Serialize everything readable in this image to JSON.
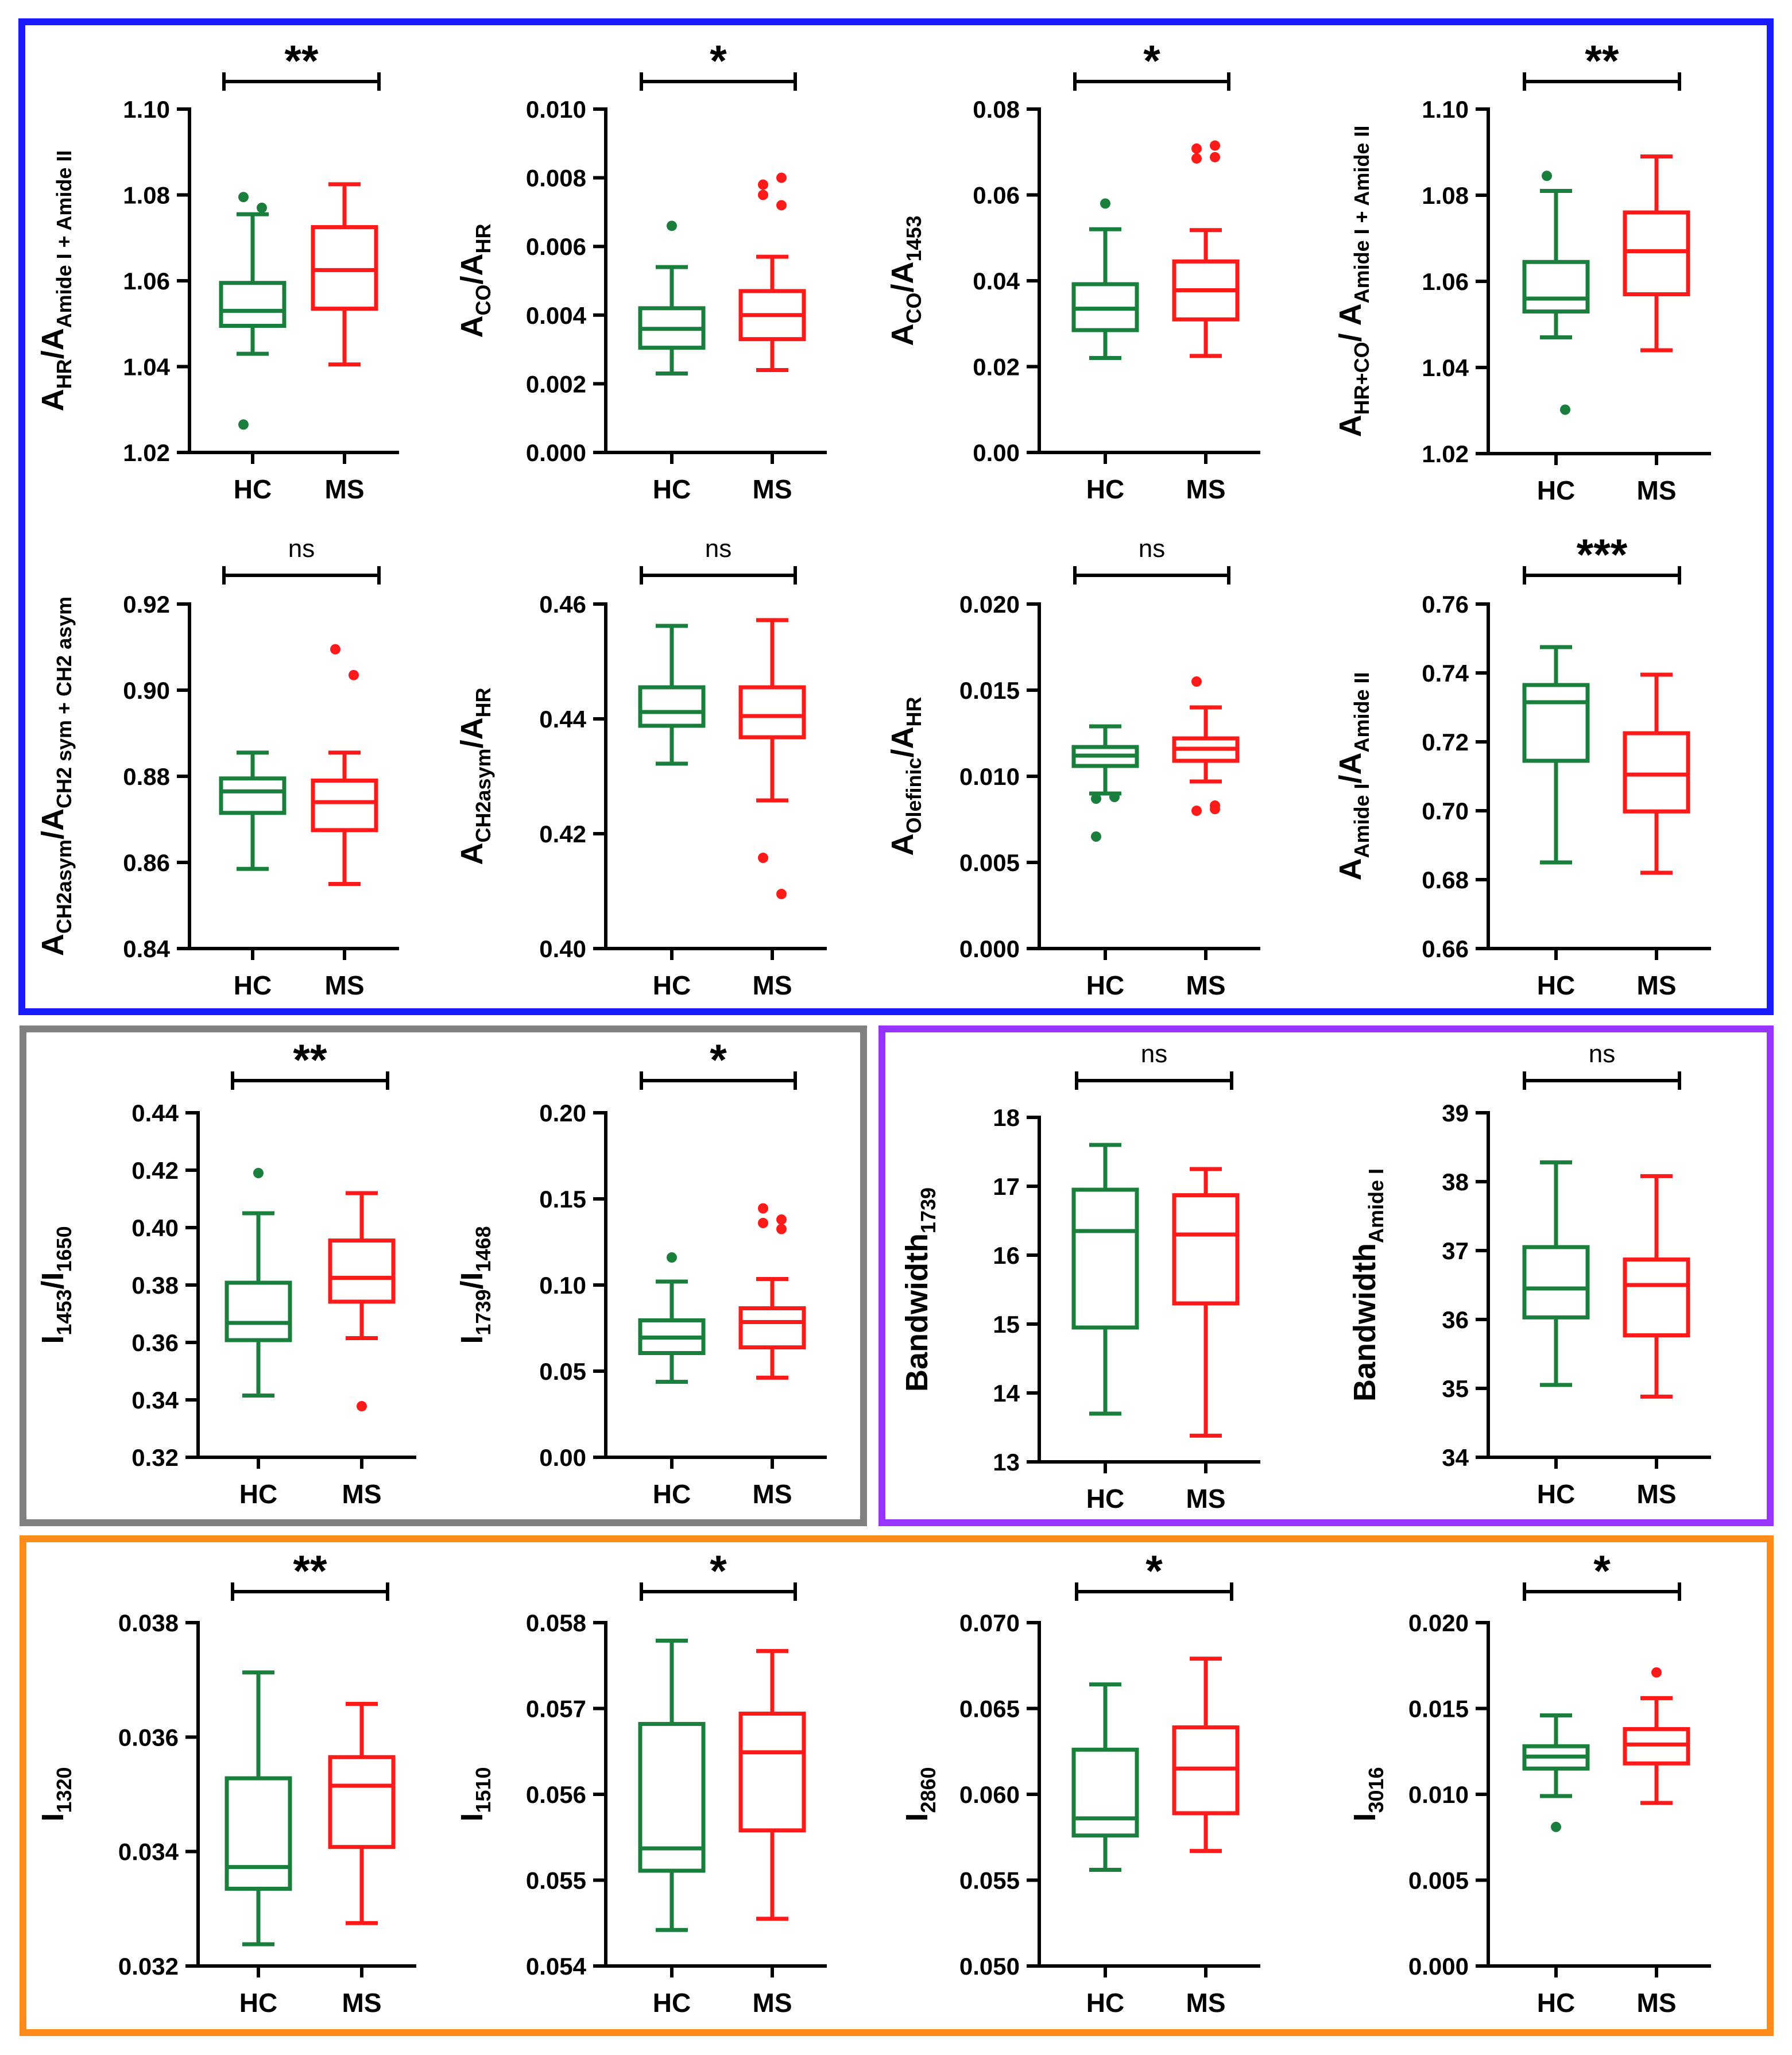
{
  "colors": {
    "hc": "#1a7f3c",
    "ms": "#ff1a1a",
    "axis": "#000000",
    "frame_blue": "#1a1aff",
    "frame_gray": "#808080",
    "frame_purple": "#9933ff",
    "frame_orange": "#ff8c1a"
  },
  "groups": [
    "HC",
    "MS"
  ],
  "chart_data": [
    {
      "type": "box",
      "id": "hr_amide",
      "ylabel": [
        {
          "t": "A"
        },
        {
          "t": "HR",
          "sub": true
        },
        {
          "t": "/A"
        },
        {
          "t": "Amide I + Amide II",
          "sub": true
        }
      ],
      "ylim": [
        1.02,
        1.1
      ],
      "ticks": [
        "1.02",
        "1.04",
        "1.06",
        "1.08",
        "1.10"
      ],
      "significance": "**",
      "boxes": [
        {
          "group": "HC",
          "min": 1.043,
          "q1": 1.0495,
          "median": 1.053,
          "q3": 1.0595,
          "max": 1.0755,
          "outliers": [
            1.0795,
            1.077,
            1.0265
          ]
        },
        {
          "group": "MS",
          "min": 1.0405,
          "q1": 1.0535,
          "median": 1.0625,
          "q3": 1.0725,
          "max": 1.0825,
          "outliers": []
        }
      ]
    },
    {
      "type": "box",
      "id": "co_hr",
      "ylabel": [
        {
          "t": "A"
        },
        {
          "t": "CO",
          "sub": true
        },
        {
          "t": "/A"
        },
        {
          "t": "HR",
          "sub": true
        }
      ],
      "ylim": [
        0.0,
        0.01
      ],
      "ticks": [
        "0.000",
        "0.002",
        "0.004",
        "0.006",
        "0.008",
        "0.010"
      ],
      "significance": "*",
      "boxes": [
        {
          "group": "HC",
          "min": 0.0023,
          "q1": 0.00305,
          "median": 0.0036,
          "q3": 0.0042,
          "max": 0.0054,
          "outliers": [
            0.0066
          ]
        },
        {
          "group": "MS",
          "min": 0.0024,
          "q1": 0.0033,
          "median": 0.004,
          "q3": 0.0047,
          "max": 0.0057,
          "outliers": [
            0.0078,
            0.008,
            0.0075,
            0.0072
          ]
        }
      ]
    },
    {
      "type": "box",
      "id": "co_1453",
      "ylabel": [
        {
          "t": "A"
        },
        {
          "t": "CO",
          "sub": true
        },
        {
          "t": "/A"
        },
        {
          "t": "1453",
          "sub": true
        }
      ],
      "ylim": [
        0.0,
        0.08
      ],
      "ticks": [
        "0.00",
        "0.02",
        "0.04",
        "0.06",
        "0.08"
      ],
      "significance": "*",
      "boxes": [
        {
          "group": "HC",
          "min": 0.022,
          "q1": 0.0285,
          "median": 0.0335,
          "q3": 0.0392,
          "max": 0.052,
          "outliers": [
            0.058
          ]
        },
        {
          "group": "MS",
          "min": 0.0225,
          "q1": 0.031,
          "median": 0.0378,
          "q3": 0.0445,
          "max": 0.0518,
          "outliers": [
            0.0708,
            0.0715,
            0.0685,
            0.0688
          ]
        }
      ]
    },
    {
      "type": "box",
      "id": "hrco_amide",
      "ylabel": [
        {
          "t": "A"
        },
        {
          "t": "HR+CO",
          "sub": true
        },
        {
          "t": "/ A"
        },
        {
          "t": "Amide I + Amide II",
          "sub": true
        }
      ],
      "ylim": [
        1.02,
        1.1
      ],
      "ticks": [
        "1.02",
        "1.04",
        "1.06",
        "1.08",
        "1.10"
      ],
      "significance": "**",
      "boxes": [
        {
          "group": "HC",
          "min": 1.047,
          "q1": 1.053,
          "median": 1.056,
          "q3": 1.0645,
          "max": 1.081,
          "outliers": [
            1.0845,
            1.0302
          ]
        },
        {
          "group": "MS",
          "min": 1.044,
          "q1": 1.057,
          "median": 1.067,
          "q3": 1.076,
          "max": 1.089,
          "outliers": []
        }
      ]
    },
    {
      "type": "box",
      "id": "ch2_ratio",
      "ylabel": [
        {
          "t": "A"
        },
        {
          "t": "CH2asym",
          "sub": true
        },
        {
          "t": "/A"
        },
        {
          "t": "CH2 sym + CH2 asym",
          "sub": true
        }
      ],
      "ylim": [
        0.84,
        0.92
      ],
      "ticks": [
        "0.84",
        "0.86",
        "0.88",
        "0.90",
        "0.92"
      ],
      "significance": "ns",
      "boxes": [
        {
          "group": "HC",
          "min": 0.8585,
          "q1": 0.8715,
          "median": 0.8765,
          "q3": 0.8795,
          "max": 0.8855,
          "outliers": []
        },
        {
          "group": "MS",
          "min": 0.855,
          "q1": 0.8675,
          "median": 0.874,
          "q3": 0.879,
          "max": 0.8855,
          "outliers": [
            0.9095,
            0.9035
          ]
        }
      ]
    },
    {
      "type": "box",
      "id": "ch2_hr",
      "ylabel": [
        {
          "t": "A"
        },
        {
          "t": "CH2asym",
          "sub": true
        },
        {
          "t": "/A"
        },
        {
          "t": "HR",
          "sub": true
        }
      ],
      "ylim": [
        0.4,
        0.46
      ],
      "ticks": [
        "0.40",
        "0.42",
        "0.44",
        "0.46"
      ],
      "significance": "ns",
      "boxes": [
        {
          "group": "HC",
          "min": 0.4322,
          "q1": 0.4388,
          "median": 0.4412,
          "q3": 0.4455,
          "max": 0.4562,
          "outliers": []
        },
        {
          "group": "MS",
          "min": 0.4258,
          "q1": 0.4368,
          "median": 0.4405,
          "q3": 0.4455,
          "max": 0.4572,
          "outliers": [
            0.4158,
            0.4095
          ]
        }
      ]
    },
    {
      "type": "box",
      "id": "olefinic_hr",
      "ylabel": [
        {
          "t": "A"
        },
        {
          "t": "Olefinic",
          "sub": true
        },
        {
          "t": "/A"
        },
        {
          "t": "HR",
          "sub": true
        }
      ],
      "ylim": [
        0.0,
        0.02
      ],
      "ticks": [
        "0.000",
        "0.005",
        "0.010",
        "0.015",
        "0.020"
      ],
      "significance": "ns",
      "boxes": [
        {
          "group": "HC",
          "min": 0.009,
          "q1": 0.0106,
          "median": 0.0112,
          "q3": 0.0117,
          "max": 0.0129,
          "outliers": [
            0.0087,
            0.0088,
            0.0065
          ]
        },
        {
          "group": "MS",
          "min": 0.0097,
          "q1": 0.0109,
          "median": 0.0116,
          "q3": 0.0122,
          "max": 0.014,
          "outliers": [
            0.0155,
            0.0083,
            0.008,
            0.0081
          ]
        }
      ]
    },
    {
      "type": "box",
      "id": "amide_i_ii",
      "ylabel": [
        {
          "t": "A"
        },
        {
          "t": "Amide I",
          "sub": true
        },
        {
          "t": "/A"
        },
        {
          "t": "Amide II",
          "sub": true
        }
      ],
      "ylim": [
        0.66,
        0.76
      ],
      "ticks": [
        "0.66",
        "0.68",
        "0.70",
        "0.72",
        "0.74",
        "0.76"
      ],
      "significance": "***",
      "boxes": [
        {
          "group": "HC",
          "min": 0.685,
          "q1": 0.7145,
          "median": 0.7315,
          "q3": 0.7365,
          "max": 0.7475,
          "outliers": []
        },
        {
          "group": "MS",
          "min": 0.682,
          "q1": 0.6998,
          "median": 0.7105,
          "q3": 0.7225,
          "max": 0.7395,
          "outliers": []
        }
      ]
    },
    {
      "type": "box",
      "id": "i1453_i1650",
      "ylabel": [
        {
          "t": "I"
        },
        {
          "t": "1453",
          "sub": true
        },
        {
          "t": "/I"
        },
        {
          "t": "1650",
          "sub": true
        }
      ],
      "ylim": [
        0.32,
        0.44
      ],
      "ticks": [
        "0.32",
        "0.34",
        "0.36",
        "0.38",
        "0.40",
        "0.42",
        "0.44"
      ],
      "significance": "**",
      "boxes": [
        {
          "group": "HC",
          "min": 0.3415,
          "q1": 0.3608,
          "median": 0.3668,
          "q3": 0.3808,
          "max": 0.405,
          "outliers": [
            0.419
          ]
        },
        {
          "group": "MS",
          "min": 0.3615,
          "q1": 0.3742,
          "median": 0.3825,
          "q3": 0.3955,
          "max": 0.412,
          "outliers": [
            0.3378
          ]
        }
      ]
    },
    {
      "type": "box",
      "id": "i1739_i1468",
      "ylabel": [
        {
          "t": "I"
        },
        {
          "t": "1739",
          "sub": true
        },
        {
          "t": "/I"
        },
        {
          "t": "1468",
          "sub": true
        }
      ],
      "ylim": [
        0.0,
        0.2
      ],
      "ticks": [
        "0.00",
        "0.05",
        "0.10",
        "0.15",
        "0.20"
      ],
      "significance": "*",
      "boxes": [
        {
          "group": "HC",
          "min": 0.0438,
          "q1": 0.0605,
          "median": 0.0695,
          "q3": 0.0795,
          "max": 0.102,
          "outliers": [
            0.116
          ]
        },
        {
          "group": "MS",
          "min": 0.0462,
          "q1": 0.0638,
          "median": 0.0785,
          "q3": 0.0865,
          "max": 0.1035,
          "outliers": [
            0.1445,
            0.138,
            0.136,
            0.1325
          ]
        }
      ]
    },
    {
      "type": "box",
      "id": "bandwidth_1739",
      "ylabel": [
        {
          "t": "Bandwidth"
        },
        {
          "t": "1739",
          "sub": true
        }
      ],
      "ylim": [
        13,
        18
      ],
      "ticks": [
        "13",
        "14",
        "15",
        "16",
        "17",
        "18"
      ],
      "significance": "ns",
      "boxes": [
        {
          "group": "HC",
          "min": 13.7,
          "q1": 14.95,
          "median": 16.35,
          "q3": 16.95,
          "max": 17.6,
          "outliers": []
        },
        {
          "group": "MS",
          "min": 13.38,
          "q1": 15.3,
          "median": 16.3,
          "q3": 16.87,
          "max": 17.25,
          "outliers": []
        }
      ]
    },
    {
      "type": "box",
      "id": "bandwidth_amide_i",
      "ylabel": [
        {
          "t": "Bandwidth"
        },
        {
          "t": "Amide I",
          "sub": true
        }
      ],
      "ylim": [
        34,
        39
      ],
      "ticks": [
        "34",
        "35",
        "36",
        "37",
        "38",
        "39"
      ],
      "significance": "ns",
      "boxes": [
        {
          "group": "HC",
          "min": 35.05,
          "q1": 36.03,
          "median": 36.45,
          "q3": 37.05,
          "max": 38.28,
          "outliers": []
        },
        {
          "group": "MS",
          "min": 34.88,
          "q1": 35.77,
          "median": 36.5,
          "q3": 36.87,
          "max": 38.08,
          "outliers": []
        }
      ]
    },
    {
      "type": "box",
      "id": "i1320",
      "ylabel": [
        {
          "t": "I"
        },
        {
          "t": "1320",
          "sub": true
        }
      ],
      "ylim": [
        0.032,
        0.038
      ],
      "ticks": [
        "0.032",
        "0.034",
        "0.036",
        "0.038"
      ],
      "significance": "**",
      "boxes": [
        {
          "group": "HC",
          "min": 0.03238,
          "q1": 0.03335,
          "median": 0.03373,
          "q3": 0.03528,
          "max": 0.03713,
          "outliers": []
        },
        {
          "group": "MS",
          "min": 0.03275,
          "q1": 0.03408,
          "median": 0.03515,
          "q3": 0.03565,
          "max": 0.03658,
          "outliers": []
        }
      ]
    },
    {
      "type": "box",
      "id": "i1510",
      "ylabel": [
        {
          "t": "I"
        },
        {
          "t": "1510",
          "sub": true
        }
      ],
      "ylim": [
        0.054,
        0.058
      ],
      "ticks": [
        "0.054",
        "0.055",
        "0.056",
        "0.057",
        "0.058"
      ],
      "significance": "*",
      "boxes": [
        {
          "group": "HC",
          "min": 0.05442,
          "q1": 0.05511,
          "median": 0.05537,
          "q3": 0.05682,
          "max": 0.05779,
          "outliers": []
        },
        {
          "group": "MS",
          "min": 0.05455,
          "q1": 0.05558,
          "median": 0.05649,
          "q3": 0.05694,
          "max": 0.05767,
          "outliers": []
        }
      ]
    },
    {
      "type": "box",
      "id": "i2860",
      "ylabel": [
        {
          "t": "I"
        },
        {
          "t": "2860",
          "sub": true
        }
      ],
      "ylim": [
        0.05,
        0.07
      ],
      "ticks": [
        "0.050",
        "0.055",
        "0.060",
        "0.065",
        "0.070"
      ],
      "significance": "*",
      "boxes": [
        {
          "group": "HC",
          "min": 0.0556,
          "q1": 0.0576,
          "median": 0.0586,
          "q3": 0.0626,
          "max": 0.0664,
          "outliers": []
        },
        {
          "group": "MS",
          "min": 0.0567,
          "q1": 0.0589,
          "median": 0.0615,
          "q3": 0.0639,
          "max": 0.0679,
          "outliers": []
        }
      ]
    },
    {
      "type": "box",
      "id": "i3016",
      "ylabel": [
        {
          "t": "I"
        },
        {
          "t": "3016",
          "sub": true
        }
      ],
      "ylim": [
        0.0,
        0.02
      ],
      "ticks": [
        "0.000",
        "0.005",
        "0.010",
        "0.015",
        "0.020"
      ],
      "significance": "*",
      "boxes": [
        {
          "group": "HC",
          "min": 0.0099,
          "q1": 0.0115,
          "median": 0.0122,
          "q3": 0.0128,
          "max": 0.0146,
          "outliers": [
            0.0081
          ]
        },
        {
          "group": "MS",
          "min": 0.0095,
          "q1": 0.0118,
          "median": 0.0129,
          "q3": 0.0138,
          "max": 0.0156,
          "outliers": [
            0.0171
          ]
        }
      ]
    }
  ]
}
